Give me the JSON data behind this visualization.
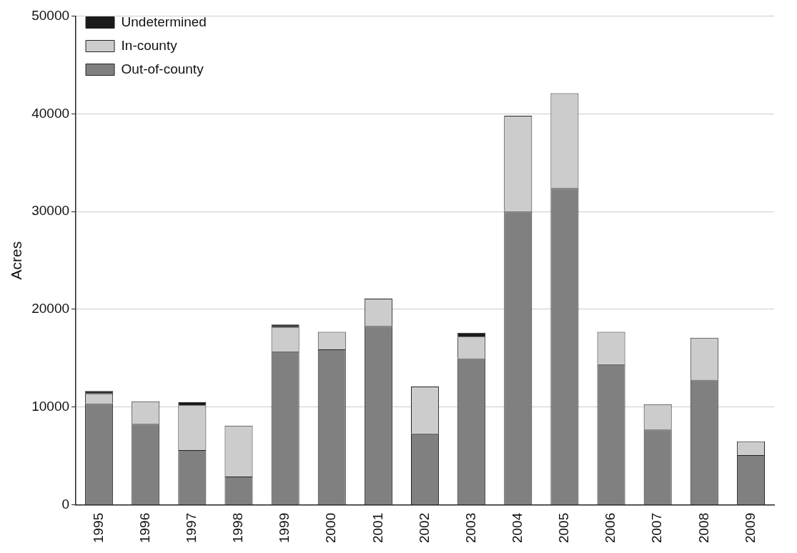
{
  "chart_data": {
    "type": "bar",
    "ylabel": "Acres",
    "stacked": true,
    "categories": [
      "1995",
      "1996",
      "1997",
      "1998",
      "1999",
      "2000",
      "2001",
      "2002",
      "2003",
      "2004",
      "2005",
      "2006",
      "2007",
      "2008",
      "2009"
    ],
    "series": [
      {
        "name": "Out-of-county",
        "color": "#808080",
        "values": [
          10400,
          8300,
          5600,
          2900,
          15700,
          15900,
          18300,
          7300,
          15000,
          30000,
          32400,
          14400,
          7700,
          12800,
          5100
        ]
      },
      {
        "name": "In-county",
        "color": "#cccccc",
        "values": [
          1000,
          2300,
          4600,
          5200,
          2500,
          1800,
          2800,
          4800,
          2200,
          9800,
          9700,
          3300,
          2600,
          4300,
          1400
        ]
      },
      {
        "name": "Undetermined",
        "color": "#1a1a1a",
        "values": [
          250,
          null,
          300,
          null,
          250,
          null,
          null,
          null,
          400,
          null,
          null,
          null,
          null,
          null,
          null
        ]
      }
    ],
    "ylim": [
      0,
      50000
    ],
    "yticks": [
      0,
      10000,
      20000,
      30000,
      40000,
      50000
    ],
    "grid": "y",
    "legend": "top left"
  }
}
